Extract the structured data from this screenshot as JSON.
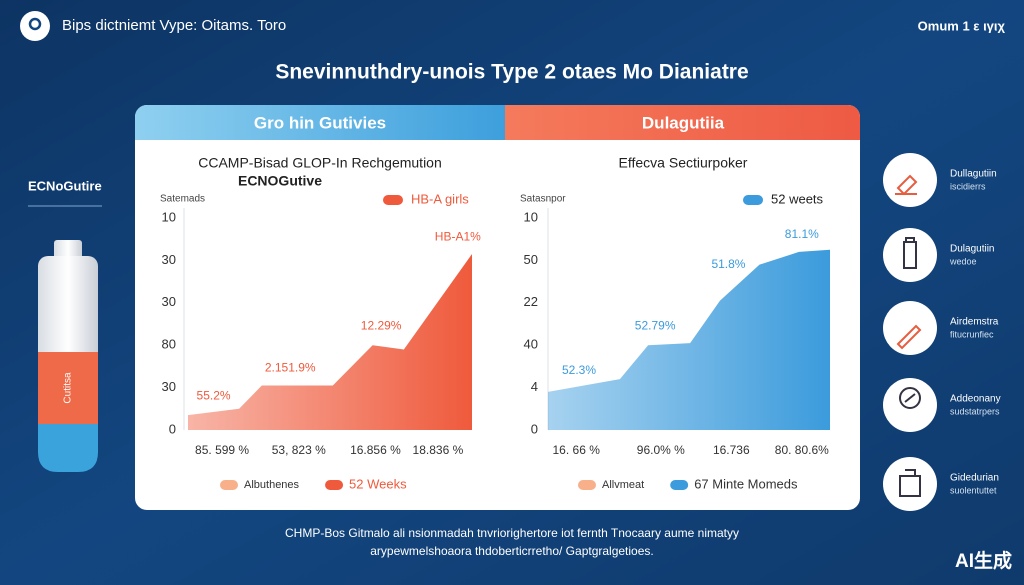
{
  "header": {
    "left": "Bips dictniemt Vype: Oitams. Toro",
    "right": "Omum 1 ε ιγιχ"
  },
  "title": "Snevinnuthdry-unois Type 2 otaes Mo Dianiatre",
  "tabs": [
    "Gro hin Gutivies",
    "Dulagutiia"
  ],
  "sidebar_label": "ECNoGutire",
  "pen_label": "Cutitsa",
  "chart_data": [
    {
      "type": "area",
      "title": "CCAMP-Bisad GLOP-In Rechgemution",
      "subtitle": "ECNOGutive",
      "y_label": "Satemads",
      "x": [
        0,
        1.8,
        2.6,
        5.1,
        6.5,
        7.6,
        10
      ],
      "xlim": [
        0,
        10
      ],
      "xticks": [
        {
          "value": 1.2,
          "label": "85. 599 %"
        },
        {
          "value": 3.9,
          "label": "53, 823 %"
        },
        {
          "value": 6.6,
          "label": "16.856 %"
        },
        {
          "value": 8.8,
          "label": "18.836 %"
        }
      ],
      "ylim": [
        0,
        100
      ],
      "yticks": [
        {
          "value": 100,
          "label": "10"
        },
        {
          "value": 80,
          "label": "30"
        },
        {
          "value": 60,
          "label": "30"
        },
        {
          "value": 40,
          "label": "80"
        },
        {
          "value": 20,
          "label": "30"
        },
        0
      ],
      "series": [
        {
          "name": "HB-A girls",
          "color": "#ef5a3c",
          "values": [
            7,
            10,
            21,
            21,
            40,
            38,
            83
          ]
        }
      ],
      "annotations": [
        {
          "text": "55.2%",
          "x": 0.9,
          "y": 16
        },
        {
          "text": "2.151.9%",
          "x": 3.6,
          "y": 29
        },
        {
          "text": "12.29%",
          "x": 6.8,
          "y": 49
        },
        {
          "text": "HB-A1%",
          "x": 9.5,
          "y": 91
        }
      ],
      "bottom_legend": [
        {
          "name": "Albuthenes",
          "color": "#f7b08a"
        },
        {
          "name": "52 Weeks",
          "color": "#ef5a3c"
        }
      ]
    },
    {
      "type": "area",
      "title": "Effecva Sectiurpoker",
      "y_label": "Satasnpor",
      "x": [
        0,
        2.55,
        3.55,
        5.04,
        6.1,
        7.5,
        8.9,
        10
      ],
      "xlim": [
        0,
        10
      ],
      "xticks": [
        {
          "value": 1.0,
          "label": "16. 66 %"
        },
        {
          "value": 4.0,
          "label": "96.0% %"
        },
        {
          "value": 6.5,
          "label": "16.736"
        },
        {
          "value": 9.0,
          "label": "80. 80.6%"
        }
      ],
      "ylim": [
        0,
        100
      ],
      "yticks": [
        {
          "value": 100,
          "label": "10"
        },
        {
          "value": 80,
          "label": "50"
        },
        {
          "value": 60,
          "label": "22"
        },
        {
          "value": 40,
          "label": "40"
        },
        {
          "value": 20,
          "label": "4"
        },
        0
      ],
      "series": [
        {
          "name": "52 weets",
          "color": "#3b9bdc",
          "values": [
            18,
            24,
            40,
            41,
            61,
            78,
            84,
            85
          ]
        }
      ],
      "annotations": [
        {
          "text": "52.3%",
          "x": 1.1,
          "y": 28
        },
        {
          "text": "52.79%",
          "x": 3.8,
          "y": 49
        },
        {
          "text": "51.8%",
          "x": 6.4,
          "y": 78
        },
        {
          "text": "81.1%",
          "x": 9.0,
          "y": 92
        }
      ],
      "bottom_legend": [
        {
          "name": "Allvmeat",
          "color": "#f7b08a"
        },
        {
          "name": "67 Minte Momeds",
          "color": "#3b9bdc"
        }
      ]
    }
  ],
  "features": [
    {
      "title": "Dullagutiin",
      "text": "iscidierrs"
    },
    {
      "title": "Dulagutiin",
      "text": "wedoe"
    },
    {
      "title": "Airdemstra",
      "text": "fitucrunfiec"
    },
    {
      "title": "Addeonany",
      "text": "sudstatrpers"
    },
    {
      "title": "Gidedurian",
      "text": "suolentuttet"
    }
  ],
  "footer": [
    "CHMP-Bos Gitmalo ali nsionmadah tnvriorighertore iot fernth Tnocaary aume nimatyy",
    "arypewmelshoaora thdoberticrretho/ Gaptgralgetioes."
  ],
  "badge": "AI生成"
}
